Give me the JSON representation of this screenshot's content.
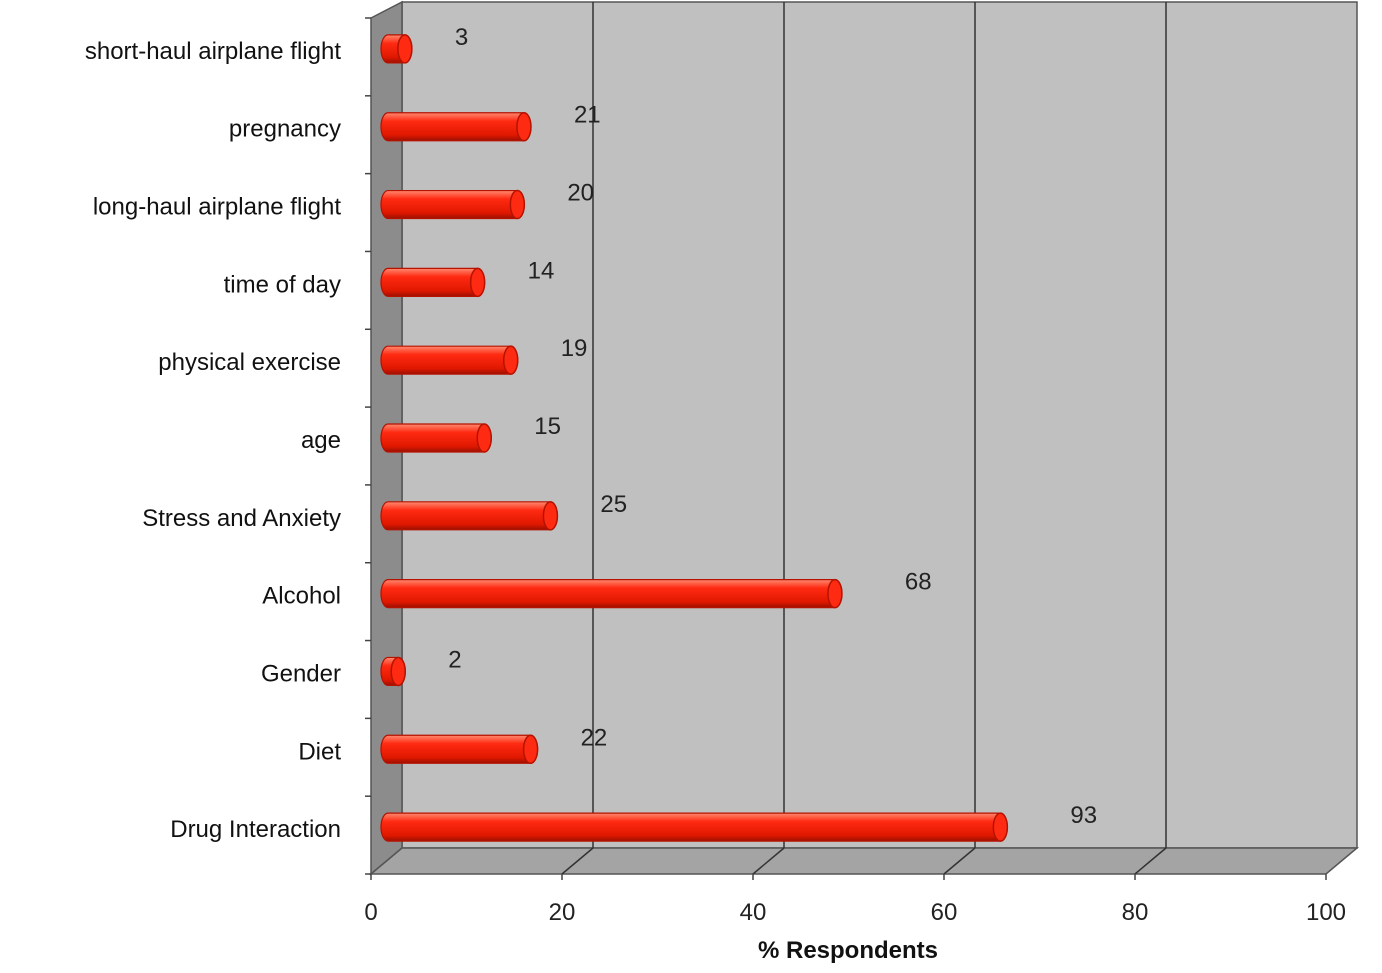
{
  "chart_data": {
    "type": "bar",
    "orientation": "horizontal",
    "style": "3d-cylinder",
    "categories": [
      "short-haul airplane flight",
      "pregnancy",
      "long-haul airplane flight",
      "time of day",
      "physical exercise",
      "age",
      "Stress and Anxiety",
      "Alcohol",
      "Gender",
      "Diet",
      "Drug Interaction"
    ],
    "values": [
      3,
      21,
      20,
      14,
      19,
      15,
      25,
      68,
      2,
      22,
      93
    ],
    "xlabel": "% Respondents",
    "ylabel": "",
    "xlim": [
      0,
      100
    ],
    "x_ticks": [
      "0",
      "20",
      "40",
      "60",
      "80",
      "100"
    ],
    "grid": true,
    "legend": "none",
    "colors": {
      "bar": "#ff2a12",
      "bar_dark": "#b51200",
      "bar_highlight": "#ff8a70",
      "plot_back": "#c0c0c0",
      "plot_side": "#8c8c8c",
      "plot_floor": "#a4a4a4",
      "gridline": "#333333"
    }
  }
}
